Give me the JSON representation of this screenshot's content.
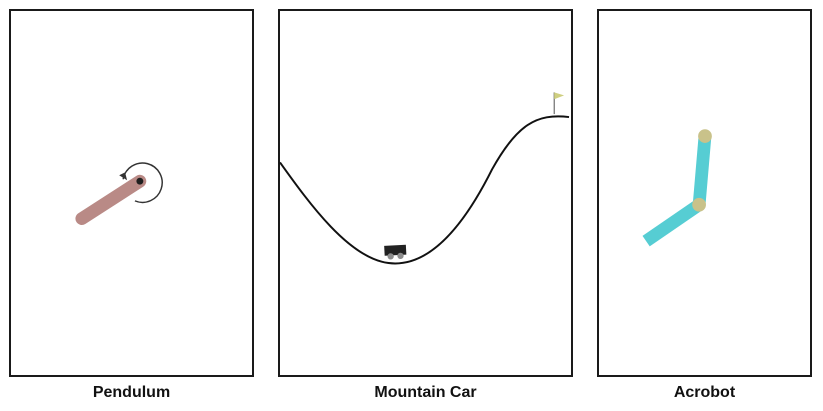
{
  "panels": [
    {
      "id": "pendulum",
      "caption": "Pendulum"
    },
    {
      "id": "mountain_car",
      "caption": "Mountain Car"
    },
    {
      "id": "acrobot",
      "caption": "Acrobot"
    }
  ],
  "colors": {
    "frame": "#1a1a1a",
    "background": "#ffffff",
    "pendulum_rod": "#b98a86",
    "pendulum_pivot": "#1f1f1f",
    "torque_arrow": "#333333",
    "mountain_curve": "#111111",
    "car_body": "#222222",
    "car_wheel": "#8c8c8c",
    "flag": "#cfcf80",
    "flagpole": "#6b6b6b",
    "acrobot_link": "#56cdd3",
    "acrobot_joint": "#c9c28a"
  },
  "icons": {
    "torque": "curved-arrow-icon",
    "goal": "flag-icon"
  }
}
